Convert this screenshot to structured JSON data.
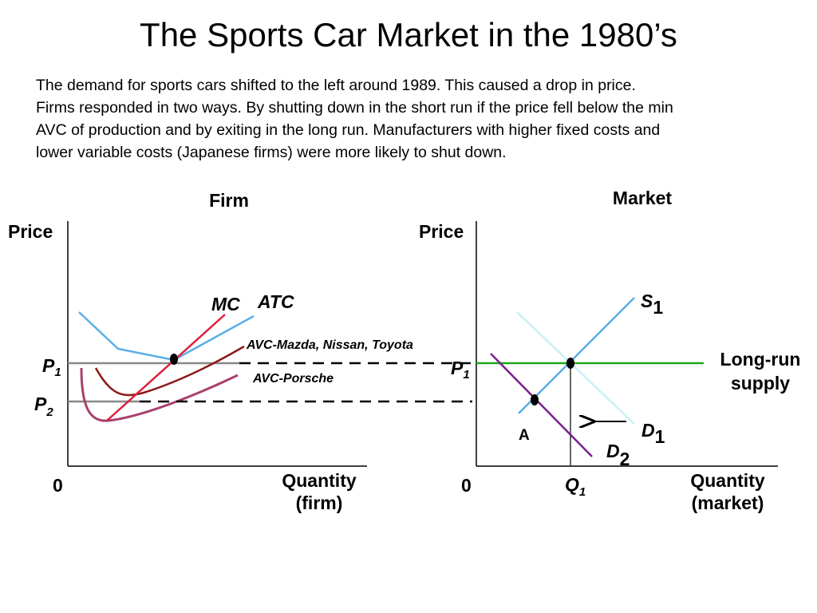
{
  "title": "The Sports Car Market in the 1980’s",
  "description": [
    "The demand for sports cars shifted to the left around 1989. This caused a drop in price.",
    "Firms responded in two ways. By shutting down in the short run if the price fell below the min",
    "AVC of production and by exiting in the long run. Manufacturers with higher fixed costs and",
    "lower variable costs (Japanese firms)  were more likely to shut down."
  ],
  "firm_panel": {
    "title": "Firm",
    "y_axis_label": "Price",
    "origin_label": "0",
    "x_axis_label_line1": "Quantity",
    "x_axis_label_line2": "(firm)",
    "p1_label": "P",
    "p1_sub": "1",
    "p2_label": "P",
    "p2_sub": "2",
    "mc_label": "MC",
    "atc_label": "ATC",
    "avc_japan_label": "AVC-Mazda, Nissan, Toyota",
    "avc_porsche_label": "AVC-Porsche"
  },
  "market_panel": {
    "title": "Market",
    "y_axis_label": "Price",
    "origin_label": "0",
    "x_axis_label_line1": "Quantity",
    "x_axis_label_line2": "(market)",
    "p1_label": "P",
    "p1_sub": "1",
    "q1_label": "Q",
    "q1_sub": "1",
    "supply_label": "S",
    "supply_sub": "1",
    "d1_label": "D",
    "d1_sub": "1",
    "d2_label": "D",
    "d2_sub": "2",
    "point_a_label": "A",
    "lr_supply_line1": "Long-run",
    "lr_supply_line2": "supply"
  },
  "colors": {
    "mc": "#e0203c",
    "atc": "#5aaee8",
    "avc_japan": "#8b1a1a",
    "avc_porsche": "#a8406e",
    "price_line": "#888888",
    "supply": "#5aaee8",
    "d1": "#c8f0f4",
    "d2": "#7b1f8e",
    "lr_supply": "#1aaa1a"
  }
}
